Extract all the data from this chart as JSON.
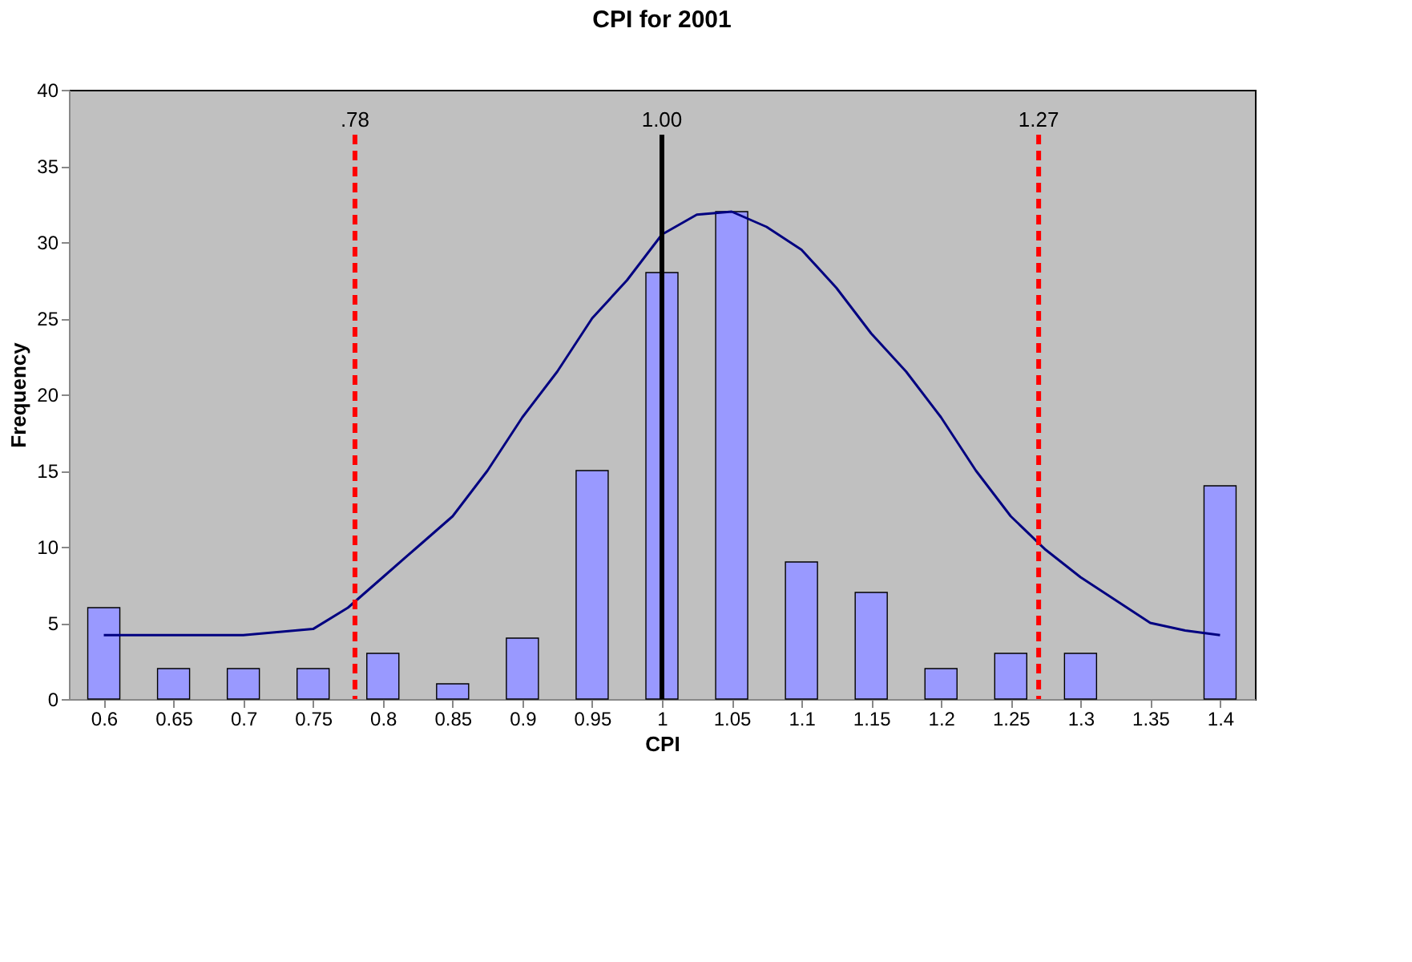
{
  "chart_data": {
    "type": "bar",
    "title": "CPI for 2001",
    "xlabel": "CPI",
    "ylabel": "Frequency",
    "x": [
      0.6,
      0.65,
      0.7,
      0.75,
      0.8,
      0.85,
      0.9,
      0.95,
      1.0,
      1.05,
      1.1,
      1.15,
      1.2,
      1.25,
      1.3,
      1.35,
      1.4
    ],
    "series": [
      {
        "color": "#9999ff",
        "values": [
          6,
          2,
          2,
          2,
          3,
          1,
          4,
          15,
          28,
          32,
          9,
          7,
          2,
          3,
          3,
          null,
          14
        ]
      },
      {
        "type": "line",
        "color": "#000080",
        "x": [
          0.6,
          0.65,
          0.7,
          0.75,
          0.775,
          0.8,
          0.825,
          0.85,
          0.875,
          0.9,
          0.925,
          0.95,
          0.975,
          1.0,
          1.025,
          1.05,
          1.075,
          1.1,
          1.125,
          1.15,
          1.175,
          1.2,
          1.225,
          1.25,
          1.275,
          1.3,
          1.325,
          1.35,
          1.375,
          1.4
        ],
        "values": [
          4.2,
          4.2,
          4.2,
          4.6,
          6,
          8,
          10,
          12,
          15,
          18.5,
          21.5,
          25,
          27.5,
          30.5,
          31.8,
          32,
          31,
          29.5,
          27,
          24,
          21.5,
          18.5,
          15,
          12,
          9.8,
          8,
          6.5,
          5,
          4.5,
          4.2
        ]
      }
    ],
    "xlim": [
      0.575,
      1.425
    ],
    "xticks": [
      0.6,
      0.65,
      0.7,
      0.75,
      0.8,
      0.85,
      0.9,
      0.95,
      1,
      1.05,
      1.1,
      1.15,
      1.2,
      1.25,
      1.3,
      1.35,
      1.4
    ],
    "ylim": [
      0,
      40
    ],
    "yticks": [
      0,
      5,
      10,
      15,
      20,
      25,
      30,
      35,
      40
    ],
    "ref_lines": [
      {
        "axis": "x",
        "value": 0.78,
        "label": ".78",
        "color": "#ff0000",
        "line_style": "dashed"
      },
      {
        "axis": "x",
        "value": 1.0,
        "label": "1.00",
        "color": "#000000",
        "line_style": "solid"
      },
      {
        "axis": "x",
        "value": 1.27,
        "label": "1.27",
        "color": "#ff0000",
        "line_style": "dashed"
      }
    ],
    "grid": false
  }
}
